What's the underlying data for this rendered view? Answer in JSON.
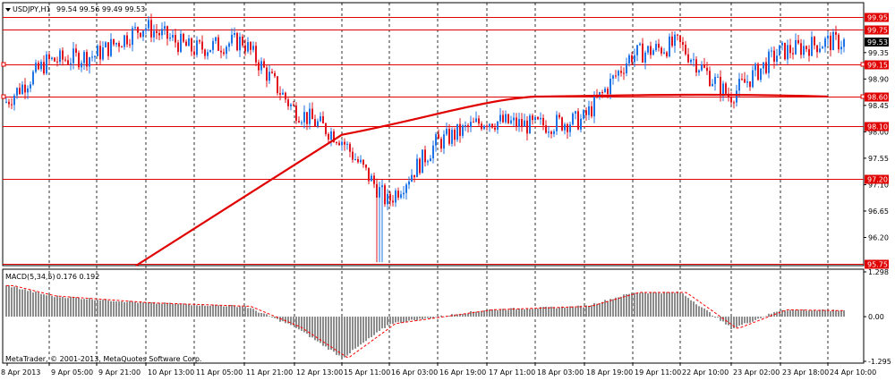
{
  "header": {
    "symbol": "USDJPY,H1",
    "ohlc": "99.54 99.56 99.49 99.53"
  },
  "macd": {
    "label": "MACD(5,34,5)",
    "values": "0.176 0.192"
  },
  "copyright": "MetaTrader, © 2001-2013, MetaQuotes Software Corp.",
  "price_axis": {
    "ticks": [
      "99.75",
      "99.35",
      "98.90",
      "98.45",
      "98.00",
      "97.55",
      "97.10",
      "96.65",
      "96.20",
      "95.75"
    ],
    "current_price": "99.53"
  },
  "macd_axis": {
    "ticks": [
      "1.298",
      "0.00",
      "-1.295"
    ]
  },
  "time_axis": {
    "labels": [
      "8 Apr 2013",
      "9 Apr 05:00",
      "9 Apr 21:00",
      "10 Apr 13:00",
      "11 Apr 05:00",
      "11 Apr 21:00",
      "12 Apr 13:00",
      "15 Apr 11:00",
      "16 Apr 03:00",
      "16 Apr 19:00",
      "17 Apr 11:00",
      "18 Apr 03:00",
      "18 Apr 19:00",
      "19 Apr 11:00",
      "22 Apr 10:00",
      "23 Apr 02:00",
      "23 Apr 18:00",
      "24 Apr 10:00"
    ]
  },
  "horizontal_levels": [
    "99.95",
    "99.75",
    "99.15",
    "98.60",
    "98.10",
    "97.20",
    "95.75"
  ],
  "colors": {
    "bull": "#1e73e6",
    "bear": "#e0141e",
    "ma": "#e00000",
    "level": "#e00000",
    "grid": "#000000",
    "macd_hist": "#8c8c8c",
    "macd_signal": "#ff0000"
  },
  "chart_data": {
    "type": "candlestick",
    "symbol": "USDJPY",
    "timeframe": "H1",
    "price_range": [
      95.72,
      100.2
    ],
    "macd_range": [
      -1.295,
      1.298
    ],
    "grid": "vertical dotted at time labels",
    "price_path": [
      [
        "8 Apr 2013",
        98.5
      ],
      [
        "9 Apr 05:00",
        99.2
      ],
      [
        "9 Apr 21:00",
        99.3
      ],
      [
        "10 Apr 13:00",
        99.8
      ],
      [
        "11 Apr 05:00",
        99.4
      ],
      [
        "11 Apr 21:00",
        99.55
      ],
      [
        "12 Apr 13:00",
        98.4
      ],
      [
        "15 Apr 11:00",
        97.9
      ],
      [
        "16 Apr 03:00",
        96.8
      ],
      [
        "16 Apr 19:00",
        97.8
      ],
      [
        "17 Apr 11:00",
        98.2
      ],
      [
        "18 Apr 03:00",
        98.1
      ],
      [
        "18 Apr 19:00",
        98.2
      ],
      [
        "19 Apr 11:00",
        99.3
      ],
      [
        "22 Apr 10:00",
        99.5
      ],
      [
        "23 Apr 02:00",
        98.6
      ],
      [
        "23 Apr 18:00",
        99.35
      ],
      [
        "24 Apr 10:00",
        99.53
      ]
    ],
    "moving_average_path": [
      [
        "15 Apr 11:00",
        97.95
      ],
      [
        "18 Apr 03:00",
        98.6
      ],
      [
        "24 Apr 10:00",
        98.6
      ]
    ],
    "macd_path": [
      [
        "8 Apr 2013",
        0.9
      ],
      [
        "9 Apr 05:00",
        0.6
      ],
      [
        "10 Apr 13:00",
        0.4
      ],
      [
        "11 Apr 21:00",
        0.3
      ],
      [
        "12 Apr 13:00",
        -0.3
      ],
      [
        "15 Apr 11:00",
        -1.2
      ],
      [
        "16 Apr 03:00",
        -0.2
      ],
      [
        "17 Apr 11:00",
        0.2
      ],
      [
        "18 Apr 19:00",
        0.3
      ],
      [
        "19 Apr 11:00",
        0.7
      ],
      [
        "22 Apr 10:00",
        0.7
      ],
      [
        "23 Apr 02:00",
        -0.35
      ],
      [
        "23 Apr 18:00",
        0.2
      ],
      [
        "24 Apr 10:00",
        0.176
      ]
    ]
  }
}
